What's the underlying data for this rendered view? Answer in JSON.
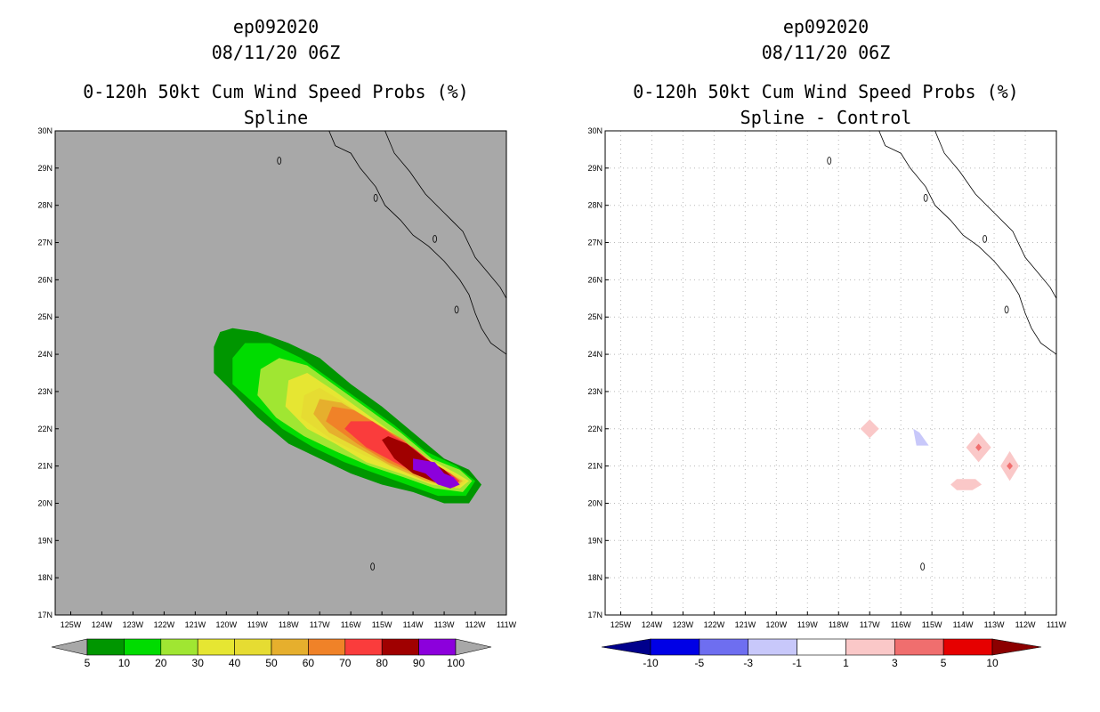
{
  "chart_data": [
    {
      "type": "heatmap",
      "title_lines": [
        "ep092020",
        "08/11/20 06Z",
        "0-120h 50kt Cum Wind Speed Probs (%)",
        "Spline"
      ],
      "xlabel": "",
      "ylabel": "",
      "xlim": [
        -125.5,
        -111
      ],
      "ylim": [
        17,
        30
      ],
      "x_ticks": [
        "125W",
        "124W",
        "123W",
        "122W",
        "121W",
        "120W",
        "119W",
        "118W",
        "117W",
        "116W",
        "115W",
        "114W",
        "113W",
        "112W",
        "111W"
      ],
      "y_ticks": [
        "17N",
        "18N",
        "19N",
        "20N",
        "21N",
        "22N",
        "23N",
        "24N",
        "25N",
        "26N",
        "27N",
        "28N",
        "29N",
        "30N"
      ],
      "background_color": "#a8a8a8",
      "colorbar": {
        "labels": [
          "5",
          "10",
          "20",
          "30",
          "40",
          "50",
          "60",
          "70",
          "80",
          "90",
          "100"
        ],
        "colors": [
          "#009600",
          "#00dc00",
          "#a0e632",
          "#e6e632",
          "#e6dc32",
          "#e6af2d",
          "#f08228",
          "#fa3c3c",
          "#a00000",
          "#8c00dc"
        ],
        "below_color": "#a8a8a8",
        "above_color": "#a8a8a8"
      },
      "contours": [
        {
          "level": 5,
          "color": "#009600",
          "points": [
            [
              -120.4,
              23.5
            ],
            [
              -120.4,
              24.2
            ],
            [
              -120.2,
              24.6
            ],
            [
              -119.8,
              24.7
            ],
            [
              -119.0,
              24.6
            ],
            [
              -118.0,
              24.3
            ],
            [
              -117.0,
              23.9
            ],
            [
              -116.0,
              23.2
            ],
            [
              -115.0,
              22.6
            ],
            [
              -114.0,
              21.9
            ],
            [
              -113.0,
              21.2
            ],
            [
              -112.2,
              20.9
            ],
            [
              -111.8,
              20.5
            ],
            [
              -112.2,
              20.0
            ],
            [
              -113.0,
              20.0
            ],
            [
              -114.0,
              20.3
            ],
            [
              -115.0,
              20.5
            ],
            [
              -116.0,
              20.8
            ],
            [
              -117.0,
              21.2
            ],
            [
              -118.0,
              21.6
            ],
            [
              -119.0,
              22.3
            ],
            [
              -119.8,
              23.0
            ]
          ]
        },
        {
          "level": 10,
          "color": "#00dc00",
          "points": [
            [
              -119.8,
              23.2
            ],
            [
              -119.8,
              23.9
            ],
            [
              -119.4,
              24.3
            ],
            [
              -118.6,
              24.3
            ],
            [
              -117.6,
              23.9
            ],
            [
              -116.6,
              23.3
            ],
            [
              -115.6,
              22.7
            ],
            [
              -114.6,
              22.1
            ],
            [
              -113.6,
              21.4
            ],
            [
              -112.6,
              21.0
            ],
            [
              -112.0,
              20.6
            ],
            [
              -112.3,
              20.2
            ],
            [
              -113.2,
              20.2
            ],
            [
              -114.2,
              20.5
            ],
            [
              -115.2,
              20.8
            ],
            [
              -116.2,
              21.1
            ],
            [
              -117.2,
              21.5
            ],
            [
              -118.2,
              22.0
            ],
            [
              -119.0,
              22.6
            ]
          ]
        },
        {
          "level": 20,
          "color": "#a0e632",
          "points": [
            [
              -119.0,
              22.9
            ],
            [
              -118.9,
              23.6
            ],
            [
              -118.3,
              23.9
            ],
            [
              -117.4,
              23.7
            ],
            [
              -116.4,
              23.1
            ],
            [
              -115.4,
              22.5
            ],
            [
              -114.4,
              21.9
            ],
            [
              -113.4,
              21.2
            ],
            [
              -112.5,
              20.9
            ],
            [
              -112.1,
              20.6
            ],
            [
              -112.4,
              20.3
            ],
            [
              -113.3,
              20.4
            ],
            [
              -114.3,
              20.7
            ],
            [
              -115.4,
              21.0
            ],
            [
              -116.5,
              21.4
            ],
            [
              -117.5,
              21.8
            ],
            [
              -118.4,
              22.3
            ]
          ]
        },
        {
          "level": 30,
          "color": "#e6e632",
          "points": [
            [
              -118.1,
              22.6
            ],
            [
              -118.0,
              23.3
            ],
            [
              -117.4,
              23.5
            ],
            [
              -116.5,
              23.0
            ],
            [
              -115.5,
              22.4
            ],
            [
              -114.5,
              21.8
            ],
            [
              -113.5,
              21.2
            ],
            [
              -112.6,
              20.8
            ],
            [
              -112.2,
              20.6
            ],
            [
              -112.5,
              20.4
            ],
            [
              -113.4,
              20.5
            ],
            [
              -114.4,
              20.8
            ],
            [
              -115.5,
              21.1
            ],
            [
              -116.5,
              21.6
            ],
            [
              -117.4,
              22.0
            ]
          ]
        },
        {
          "level": 40,
          "color": "#e6dc32",
          "points": [
            [
              -117.6,
              22.3
            ],
            [
              -117.5,
              22.9
            ],
            [
              -117.0,
              23.1
            ],
            [
              -116.2,
              22.7
            ],
            [
              -115.3,
              22.2
            ],
            [
              -114.4,
              21.7
            ],
            [
              -113.5,
              21.1
            ],
            [
              -112.7,
              20.8
            ],
            [
              -112.3,
              20.6
            ],
            [
              -112.6,
              20.4
            ],
            [
              -113.5,
              20.6
            ],
            [
              -114.5,
              20.9
            ],
            [
              -115.6,
              21.3
            ],
            [
              -116.6,
              21.7
            ]
          ]
        },
        {
          "level": 50,
          "color": "#e6af2d",
          "points": [
            [
              -117.2,
              22.4
            ],
            [
              -117.0,
              22.8
            ],
            [
              -116.3,
              22.7
            ],
            [
              -115.5,
              22.3
            ],
            [
              -114.6,
              21.8
            ],
            [
              -113.7,
              21.2
            ],
            [
              -112.8,
              20.8
            ],
            [
              -112.4,
              20.6
            ],
            [
              -112.7,
              20.4
            ],
            [
              -113.6,
              20.6
            ],
            [
              -114.7,
              21.0
            ],
            [
              -115.8,
              21.5
            ],
            [
              -116.7,
              21.9
            ]
          ]
        },
        {
          "level": 60,
          "color": "#f08228",
          "points": [
            [
              -116.8,
              22.2
            ],
            [
              -116.6,
              22.6
            ],
            [
              -115.9,
              22.5
            ],
            [
              -115.1,
              22.1
            ],
            [
              -114.3,
              21.7
            ],
            [
              -113.5,
              21.1
            ],
            [
              -112.8,
              20.8
            ],
            [
              -112.5,
              20.6
            ],
            [
              -112.8,
              20.4
            ],
            [
              -113.7,
              20.7
            ],
            [
              -114.8,
              21.1
            ],
            [
              -115.8,
              21.6
            ]
          ]
        },
        {
          "level": 70,
          "color": "#fa3c3c",
          "points": [
            [
              -116.2,
              22.0
            ],
            [
              -116.0,
              22.2
            ],
            [
              -115.3,
              22.2
            ],
            [
              -114.6,
              21.8
            ],
            [
              -114.0,
              21.5
            ],
            [
              -113.4,
              21.1
            ],
            [
              -112.8,
              20.8
            ],
            [
              -112.5,
              20.6
            ],
            [
              -112.8,
              20.4
            ],
            [
              -113.6,
              20.7
            ],
            [
              -114.6,
              21.1
            ],
            [
              -115.5,
              21.5
            ]
          ]
        },
        {
          "level": 80,
          "color": "#a00000",
          "points": [
            [
              -115.0,
              21.7
            ],
            [
              -114.8,
              21.8
            ],
            [
              -114.2,
              21.6
            ],
            [
              -113.6,
              21.2
            ],
            [
              -113.0,
              20.9
            ],
            [
              -112.6,
              20.6
            ],
            [
              -112.8,
              20.4
            ],
            [
              -113.4,
              20.6
            ],
            [
              -114.0,
              20.8
            ],
            [
              -114.6,
              21.2
            ]
          ]
        },
        {
          "level": 90,
          "color": "#8c00dc",
          "points": [
            [
              -114.0,
              21.2
            ],
            [
              -113.3,
              21.1
            ],
            [
              -113.0,
              20.8
            ],
            [
              -112.7,
              20.7
            ],
            [
              -112.5,
              20.5
            ],
            [
              -112.8,
              20.4
            ],
            [
              -113.2,
              20.5
            ],
            [
              -113.6,
              20.8
            ],
            [
              -114.0,
              20.9
            ]
          ]
        }
      ]
    },
    {
      "type": "heatmap",
      "title_lines": [
        "ep092020",
        "08/11/20 06Z",
        "0-120h 50kt Cum Wind Speed Probs (%)",
        "Spline - Control"
      ],
      "xlabel": "",
      "ylabel": "",
      "xlim": [
        -125.5,
        -111
      ],
      "ylim": [
        17,
        30
      ],
      "x_ticks": [
        "125W",
        "124W",
        "123W",
        "122W",
        "121W",
        "120W",
        "119W",
        "118W",
        "117W",
        "116W",
        "115W",
        "114W",
        "113W",
        "112W",
        "111W"
      ],
      "y_ticks": [
        "17N",
        "18N",
        "19N",
        "20N",
        "21N",
        "22N",
        "23N",
        "24N",
        "25N",
        "26N",
        "27N",
        "28N",
        "29N",
        "30N"
      ],
      "background_color": "#ffffff",
      "grid": true,
      "colorbar": {
        "labels": [
          "-10",
          "-5",
          "-3",
          "-1",
          "1",
          "3",
          "5",
          "10"
        ],
        "colors": [
          "#0000e6",
          "#6e6ef0",
          "#c8c8fa",
          "#ffffff",
          "#fac8c8",
          "#f06e6e",
          "#e60000"
        ],
        "below_color": "#00008c",
        "above_color": "#8c0000"
      },
      "contours": [
        {
          "level": 1,
          "color": "#fac8c8",
          "points": [
            [
              -117.0,
              22.25
            ],
            [
              -116.7,
              22.0
            ],
            [
              -117.0,
              21.75
            ],
            [
              -117.3,
              22.0
            ]
          ]
        },
        {
          "level": -1,
          "color": "#c8c8fa",
          "points": [
            [
              -115.6,
              22.0
            ],
            [
              -115.4,
              21.9
            ],
            [
              -115.1,
              21.55
            ],
            [
              -115.5,
              21.55
            ]
          ]
        },
        {
          "level": 1,
          "color": "#fac8c8",
          "points": [
            [
              -113.5,
              21.9
            ],
            [
              -113.1,
              21.5
            ],
            [
              -113.5,
              21.1
            ],
            [
              -113.9,
              21.5
            ]
          ]
        },
        {
          "level": 3,
          "color": "#f06e6e",
          "points": [
            [
              -113.5,
              21.6
            ],
            [
              -113.4,
              21.5
            ],
            [
              -113.5,
              21.4
            ],
            [
              -113.6,
              21.5
            ]
          ]
        },
        {
          "level": 1,
          "color": "#fac8c8",
          "points": [
            [
              -112.5,
              21.4
            ],
            [
              -112.2,
              21.0
            ],
            [
              -112.5,
              20.6
            ],
            [
              -112.8,
              21.0
            ]
          ]
        },
        {
          "level": 3,
          "color": "#f06e6e",
          "points": [
            [
              -112.5,
              21.1
            ],
            [
              -112.4,
              21.0
            ],
            [
              -112.5,
              20.9
            ],
            [
              -112.6,
              21.0
            ]
          ]
        },
        {
          "level": 1,
          "color": "#fac8c8",
          "points": [
            [
              -114.2,
              20.65
            ],
            [
              -113.6,
              20.65
            ],
            [
              -113.4,
              20.5
            ],
            [
              -113.7,
              20.35
            ],
            [
              -114.2,
              20.35
            ],
            [
              -114.4,
              20.5
            ]
          ]
        }
      ]
    }
  ]
}
